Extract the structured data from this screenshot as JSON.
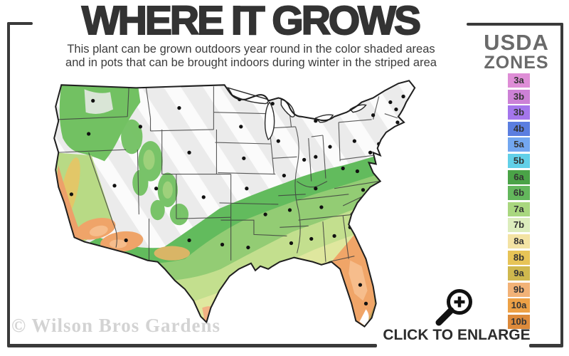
{
  "title": "WHERE IT GROWS",
  "subtitle": {
    "line1": "This plant can be grown outdoors year round in the color shaded areas",
    "line2": "and in pots that can be brought indoors during winter in the striped area"
  },
  "legend": {
    "heading_line1": "USDA",
    "heading_line2": "ZONES",
    "zones": [
      {
        "label": "3a",
        "color": "#de8dd6"
      },
      {
        "label": "3b",
        "color": "#cc81d6"
      },
      {
        "label": "3b",
        "color": "#a476ec"
      },
      {
        "label": "4b",
        "color": "#5b7ee0"
      },
      {
        "label": "5a",
        "color": "#73a7f0"
      },
      {
        "label": "5b",
        "color": "#62d0e8"
      },
      {
        "label": "6a",
        "color": "#4aa347"
      },
      {
        "label": "6b",
        "color": "#63b75c"
      },
      {
        "label": "7a",
        "color": "#a9d77f"
      },
      {
        "label": "7b",
        "color": "#dcedbd"
      },
      {
        "label": "8a",
        "color": "#f3e3a4"
      },
      {
        "label": "8b",
        "color": "#e7c457"
      },
      {
        "label": "9a",
        "color": "#cfb84e"
      },
      {
        "label": "9b",
        "color": "#f2b277"
      },
      {
        "label": "10a",
        "color": "#eda146"
      },
      {
        "label": "10b",
        "color": "#dd8a3b"
      }
    ]
  },
  "watermark": "© Wilson Bros Gardens",
  "enlarge": {
    "label": "CLICK TO ENLARGE",
    "icon": "magnifier-plus-icon"
  },
  "colors": {
    "frame": "#3a3a3a",
    "title": "#333333",
    "legend_heading": "#6a6a6a",
    "watermark": "#d3d3d3",
    "map_striped_base": "#ebebeb"
  }
}
